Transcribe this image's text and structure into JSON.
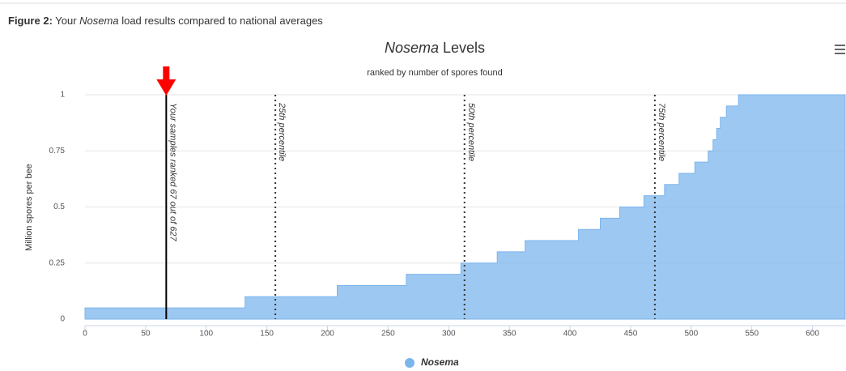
{
  "caption": [
    "Figure 2:",
    " Your ",
    "Nosema",
    " load results compared to national averages"
  ],
  "chart_data": {
    "type": "step-area",
    "title": [
      "Nosema",
      " Levels"
    ],
    "subtitle": "ranked by number of spores found",
    "y_label": "Million spores per bee",
    "series": [
      {
        "name": "Nosema",
        "color": "#7cb5ec",
        "x": [
          0,
          132,
          208,
          265,
          310,
          340,
          363,
          407,
          425,
          441,
          461,
          478,
          490,
          503,
          514,
          518,
          521,
          524,
          529,
          539
        ],
        "values": [
          0.05,
          0.1,
          0.15,
          0.2,
          0.25,
          0.3,
          0.35,
          0.4,
          0.45,
          0.5,
          0.55,
          0.6,
          0.65,
          0.7,
          0.75,
          0.8,
          0.85,
          0.9,
          0.95,
          1
        ]
      }
    ],
    "plot_lines": [
      {
        "value": 67,
        "label": "Your samples ranked 67 out of 627",
        "style": "solid"
      },
      {
        "value": 157,
        "label": "25th percentile",
        "style": "dotted"
      },
      {
        "value": 313,
        "label": "50th percentile",
        "style": "dotted"
      },
      {
        "value": 470,
        "label": "75th percentile",
        "style": "dotted"
      }
    ],
    "xlim": [
      0,
      627
    ],
    "xticks": [
      0,
      50,
      100,
      150,
      200,
      250,
      300,
      350,
      400,
      450,
      500,
      550,
      600
    ],
    "ylim": [
      0,
      1
    ],
    "yticks": [
      0,
      0.25,
      0.5,
      0.75,
      1
    ],
    "grid": true,
    "legend": "bottom"
  }
}
